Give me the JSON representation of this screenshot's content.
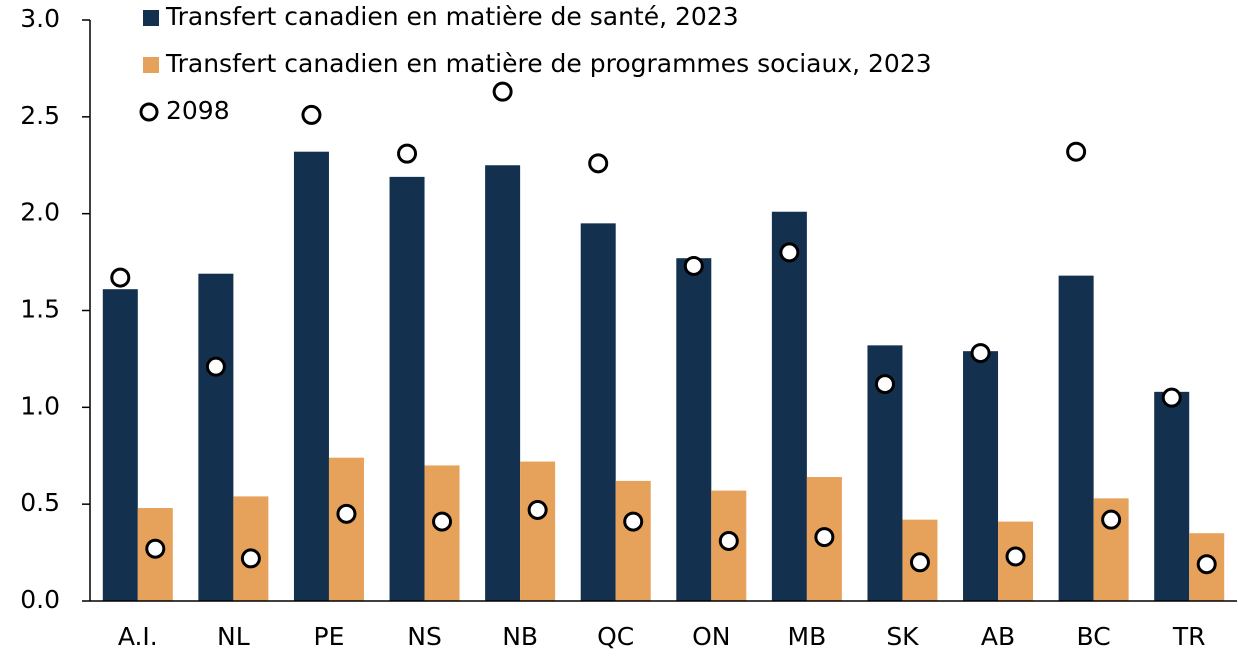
{
  "chart_data": {
    "type": "bar",
    "categories": [
      "A.I.",
      "NL",
      "PE",
      "NS",
      "NB",
      "QC",
      "ON",
      "MB",
      "SK",
      "AB",
      "BC",
      "TR"
    ],
    "series": [
      {
        "name": "Transfert canadien en matière de santé, 2023",
        "color": "#13304f",
        "marker": "square",
        "values": [
          1.61,
          1.69,
          2.32,
          2.19,
          2.25,
          1.95,
          1.77,
          2.01,
          1.32,
          1.29,
          1.68,
          1.08
        ]
      },
      {
        "name": "Transfert canadien en matière de programmes sociaux, 2023",
        "color": "#e6a15a",
        "marker": "square",
        "values": [
          0.48,
          0.54,
          0.74,
          0.7,
          0.72,
          0.62,
          0.57,
          0.64,
          0.42,
          0.41,
          0.53,
          0.35
        ]
      },
      {
        "name": "2098",
        "color": "#ffffff",
        "marker": "circle",
        "values": [
          [
            1.67,
            0.27
          ],
          [
            1.21,
            0.22
          ],
          [
            2.51,
            0.45
          ],
          [
            2.31,
            0.41
          ],
          [
            2.63,
            0.47
          ],
          [
            2.26,
            0.41
          ],
          [
            1.73,
            0.31
          ],
          [
            1.8,
            0.33
          ],
          [
            1.12,
            0.2
          ],
          [
            1.28,
            0.23
          ],
          [
            2.32,
            0.42
          ],
          [
            1.05,
            0.19
          ]
        ]
      }
    ],
    "ylim": [
      0,
      3
    ],
    "yticks": [
      {
        "value": 0,
        "label": "0.0"
      },
      0.5,
      {
        "value": 1,
        "label": "1.0"
      },
      1.5,
      {
        "value": 2,
        "label": "2.0"
      },
      2.5,
      {
        "value": 3,
        "label": "3.0"
      }
    ],
    "grid": false,
    "legend": "top-left"
  }
}
